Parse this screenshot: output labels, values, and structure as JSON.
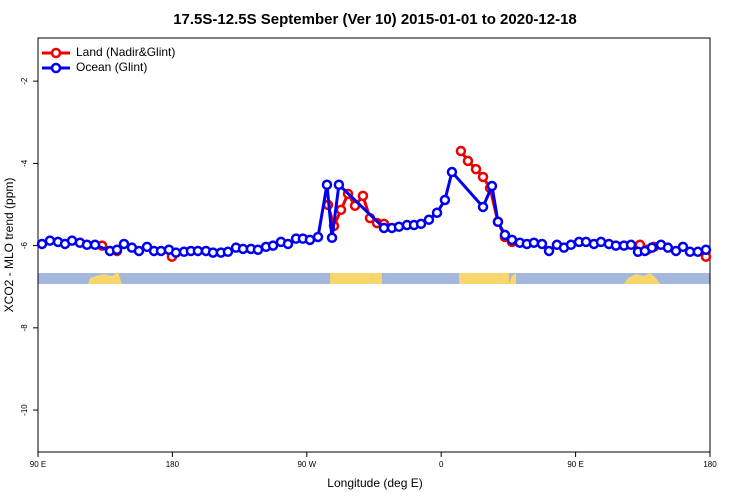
{
  "chart_data": {
    "type": "line",
    "title": "17.5S-12.5S September (Ver 10)   2015-01-01 to 2020-12-18",
    "x_label": "Longitude (deg E)",
    "y_label": "XCO2 - MLO trend (ppm)",
    "xlim": [
      90,
      540
    ],
    "ylim": [
      -11.02,
      -0.95
    ],
    "xticks": [
      {
        "value": 90,
        "label": "90 E"
      },
      180,
      {
        "value": 270,
        "label": "90 W"
      },
      {
        "value": 360,
        "label": "0"
      },
      {
        "value": 450,
        "label": "90 E"
      },
      {
        "value": 540,
        "label": "180"
      }
    ],
    "yticks": [
      -2,
      -4,
      -6,
      -8,
      -10
    ],
    "legend": "top-left",
    "series": [
      {
        "name": "Land (Nadir&Glint)",
        "color": "#ee0000",
        "x": [
          132.9,
          142.9,
          null,
          179.7,
          null,
          284.2,
          288.2,
          292.9,
          297.6,
          302.3,
          307.6,
          312.3,
          317.0,
          321.7,
          null,
          373.2,
          377.9,
          383.3,
          388.0,
          392.7,
          398.0,
          402.7,
          407.4,
          null,
          493.1,
          497.8,
          502.5,
          null,
          537.3
        ],
        "values": [
          -6.0,
          -6.13,
          null,
          -6.27,
          null,
          -5.01,
          -5.52,
          -5.13,
          -4.74,
          -5.03,
          -4.79,
          -5.33,
          -5.45,
          -5.47,
          null,
          -3.7,
          -3.94,
          -4.14,
          -4.33,
          -4.6,
          -5.42,
          -5.79,
          -5.91,
          null,
          -5.98,
          -6.1,
          -6.03,
          null,
          -6.27
        ]
      },
      {
        "name": "Ocean (Glint)",
        "color": "#0000ee",
        "x": [
          92.7,
          98.0,
          103.4,
          108.1,
          112.8,
          118.1,
          122.8,
          128.2,
          138.2,
          142.9,
          147.6,
          152.9,
          157.6,
          163.0,
          167.7,
          172.4,
          177.7,
          182.4,
          187.8,
          192.4,
          197.1,
          202.5,
          207.2,
          212.5,
          217.2,
          222.6,
          227.3,
          232.6,
          237.3,
          242.7,
          247.4,
          252.7,
          257.4,
          262.8,
          267.4,
          272.1,
          277.5,
          283.5,
          286.9,
          291.5,
          321.7,
          327.0,
          331.7,
          337.1,
          341.8,
          346.5,
          351.8,
          357.2,
          362.5,
          367.2,
          388.0,
          394.0,
          398.0,
          402.7,
          407.4,
          412.7,
          417.4,
          422.1,
          427.5,
          432.2,
          437.5,
          442.2,
          446.9,
          452.3,
          457.0,
          462.3,
          467.0,
          472.3,
          477.0,
          482.4,
          487.1,
          491.8,
          496.4,
          501.1,
          507.2,
          511.8,
          517.2,
          521.9,
          526.6,
          531.9,
          537.3
        ],
        "values": [
          -5.96,
          -5.88,
          -5.91,
          -5.96,
          -5.88,
          -5.93,
          -5.98,
          -5.98,
          -6.13,
          -6.1,
          -5.96,
          -6.05,
          -6.13,
          -6.03,
          -6.13,
          -6.13,
          -6.1,
          -6.17,
          -6.15,
          -6.13,
          -6.13,
          -6.13,
          -6.17,
          -6.17,
          -6.15,
          -6.05,
          -6.08,
          -6.08,
          -6.1,
          -6.03,
          -6.0,
          -5.91,
          -5.96,
          -5.83,
          -5.83,
          -5.86,
          -5.79,
          -4.52,
          -5.81,
          -4.52,
          -5.57,
          -5.57,
          -5.54,
          -5.5,
          -5.5,
          -5.47,
          -5.37,
          -5.2,
          -4.89,
          -4.21,
          -5.06,
          -4.55,
          -5.42,
          -5.74,
          -5.86,
          -5.93,
          -5.96,
          -5.93,
          -5.96,
          -6.13,
          -5.98,
          -6.05,
          -5.98,
          -5.91,
          -5.91,
          -5.96,
          -5.91,
          -5.96,
          -6.0,
          -6.0,
          -5.98,
          -6.15,
          -6.13,
          -6.05,
          -5.98,
          -6.05,
          -6.13,
          -6.03,
          -6.15,
          -6.15,
          -6.1
        ]
      }
    ]
  }
}
